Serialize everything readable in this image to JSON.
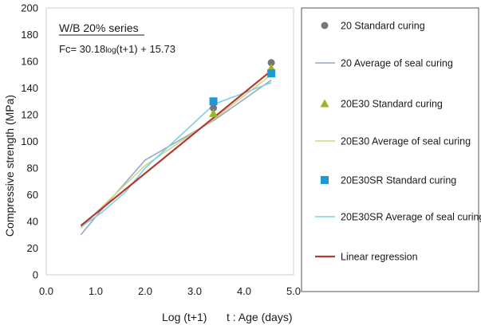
{
  "chart_data": {
    "type": "line",
    "ylabel": "Compressive strength (MPa)",
    "xlabel_main": "Log (t+1)",
    "xlabel_note": "t : Age (days)",
    "xlim": [
      0,
      5
    ],
    "ylim": [
      0,
      200
    ],
    "x_ticks": [
      "0.0",
      "1.0",
      "2.0",
      "3.0",
      "4.0",
      "5.0"
    ],
    "y_ticks": [
      "0",
      "20",
      "40",
      "60",
      "80",
      "100",
      "120",
      "140",
      "160",
      "180",
      "200"
    ],
    "grid": false,
    "annotation": {
      "series_title": "W/B  20% series",
      "equation_prefix": "Fc= 30.18",
      "equation_log": "log",
      "equation_suffix": "(t+1) + 15.73"
    },
    "legend_position": "right",
    "series": [
      {
        "name": "20 Standard curing",
        "marker": "circle",
        "color": "#777777",
        "x": [
          3.38,
          4.55
        ],
        "y": [
          125,
          159
        ]
      },
      {
        "name": "20 Average of seal curing",
        "line": true,
        "color": "#9aa7c2",
        "x": [
          0.7,
          1.1,
          2.0,
          3.4,
          4.55
        ],
        "y": [
          30,
          48,
          86,
          116,
          146
        ]
      },
      {
        "name": "20E30 Standard curing",
        "marker": "triangle",
        "color": "#9bb52a",
        "x": [
          3.38,
          4.55
        ],
        "y": [
          121,
          155
        ]
      },
      {
        "name": "20E30 Average of seal curing",
        "line": true,
        "color": "#cfd685",
        "x": [
          0.7,
          1.1,
          2.0,
          3.4,
          4.55
        ],
        "y": [
          35,
          50,
          82,
          117,
          150
        ]
      },
      {
        "name": "20E30SR Standard curing",
        "marker": "square",
        "color": "#1b9ad6",
        "x": [
          3.38,
          4.55
        ],
        "y": [
          130,
          151
        ]
      },
      {
        "name": "20E30SR Average of seal curing",
        "line": true,
        "color": "#7fd0e2",
        "x": [
          0.7,
          1.1,
          1.6,
          2.0,
          3.4,
          4.55
        ],
        "y": [
          36,
          46,
          62,
          80,
          128,
          144
        ]
      },
      {
        "name": "Linear regression",
        "line": true,
        "color": "#b23a35",
        "regression": true,
        "x": [
          0.7,
          4.55
        ],
        "y": [
          36.9,
          153.0
        ]
      }
    ],
    "legend": [
      {
        "code": "20",
        "desc": "Standard curing",
        "symbol": "circle",
        "color": "#777777"
      },
      {
        "code": "20",
        "desc": "Average of seal curing",
        "symbol": "line",
        "color": "#9aa7c2"
      },
      {
        "code": "20E30",
        "desc": "Standard curing",
        "symbol": "triangle",
        "color": "#9bb52a"
      },
      {
        "code": "20E30",
        "desc": "Average of seal curing",
        "symbol": "line",
        "color": "#cfd685"
      },
      {
        "code": "20E30SR",
        "desc": "Standard curing",
        "symbol": "square",
        "color": "#1b9ad6"
      },
      {
        "code": "20E30SR",
        "desc": "Average of seal curing",
        "symbol": "line",
        "color": "#7fd0e2"
      },
      {
        "code": "",
        "desc": "Linear regression",
        "symbol": "line",
        "color": "#b23a35"
      }
    ]
  }
}
